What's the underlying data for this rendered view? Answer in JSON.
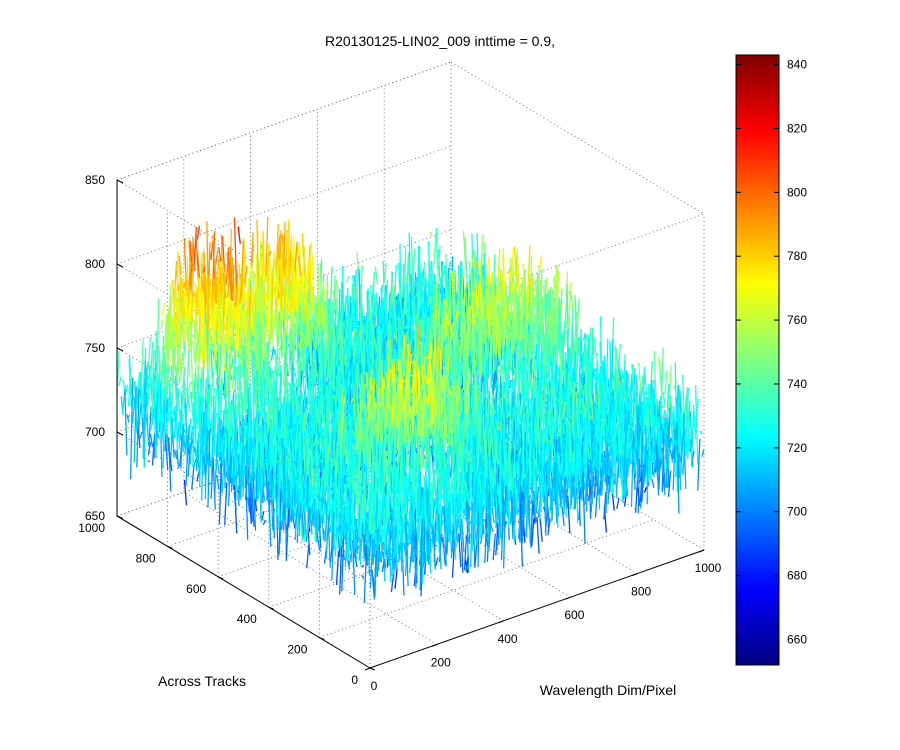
{
  "chart_data": {
    "type": "surface3d",
    "title": "R20130125-LIN02_009 inttime = 0.9,",
    "xlabel": "Wavelength Dim/Pixel",
    "ylabel": "Across Tracks",
    "zlabel": "",
    "xlim": [
      0,
      1000
    ],
    "ylim": [
      0,
      1000
    ],
    "zlim": [
      650,
      850
    ],
    "x_ticks": [
      0,
      200,
      400,
      600,
      800,
      1000
    ],
    "x_tick_labels": [
      "0",
      "200",
      "400",
      "600",
      "800",
      "1000"
    ],
    "y_ticks": [
      0,
      200,
      400,
      600,
      800,
      1000
    ],
    "y_tick_labels": [
      "0",
      "200",
      "400",
      "600",
      "800",
      "1000"
    ],
    "z_ticks": [
      650,
      700,
      750,
      800,
      850
    ],
    "z_tick_labels": [
      "650",
      "700",
      "750",
      "800",
      "850"
    ],
    "grid": true,
    "colormap": "jet",
    "colorbar": {
      "range": [
        652,
        843
      ],
      "ticks": [
        660,
        680,
        700,
        720,
        740,
        760,
        780,
        800,
        820,
        840
      ],
      "tick_labels": [
        "660",
        "680",
        "700",
        "720",
        "740",
        "760",
        "780",
        "800",
        "820",
        "840"
      ]
    },
    "surface_summary": {
      "baseline": 718,
      "noise_amplitude": 22,
      "features": [
        {
          "region": "x 100-280, y 750-1000",
          "approx_level": 785
        },
        {
          "region": "x 300-500, y 750-1000",
          "approx_level": 770
        },
        {
          "region": "x 550-1000, y 850-1000",
          "approx_level": 715
        },
        {
          "region": "x 200-500, y 200-400",
          "approx_level": 758
        },
        {
          "region": "x 600-1000, y 450-650",
          "approx_level": 752
        }
      ]
    }
  }
}
